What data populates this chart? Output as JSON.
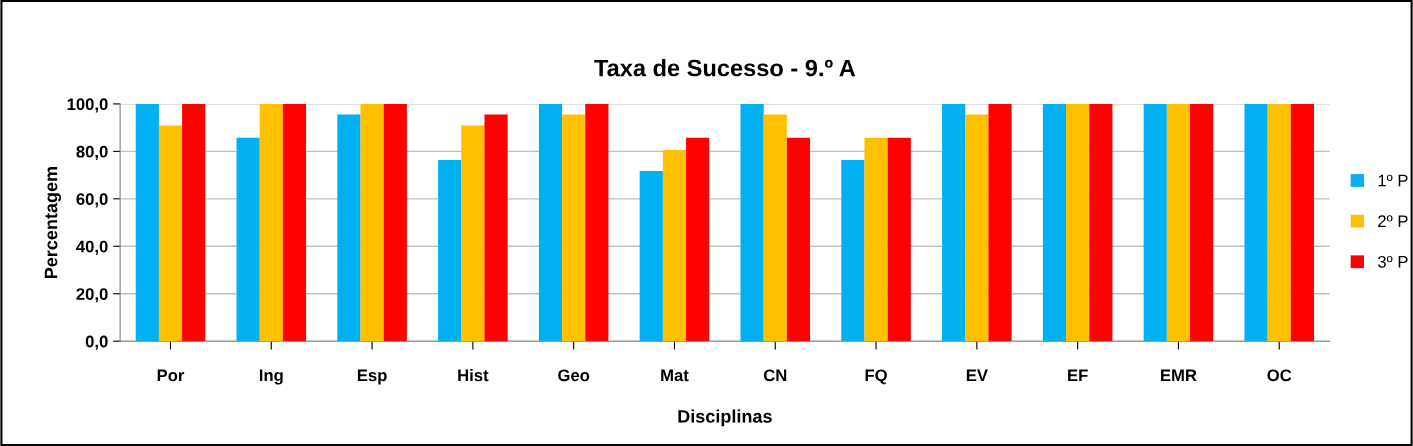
{
  "chart_data": {
    "type": "bar",
    "title": "Taxa de Sucesso - 9.º A",
    "xlabel": "Disciplinas",
    "ylabel": "Percentagem",
    "categories": [
      "Por",
      "Ing",
      "Esp",
      "Hist",
      "Geo",
      "Mat",
      "CN",
      "FQ",
      "EV",
      "EF",
      "EMR",
      "OC"
    ],
    "series": [
      {
        "name": "1º P",
        "color": "#00b0f0",
        "values": [
          100,
          85.7,
          95.5,
          76.4,
          100,
          71.7,
          100,
          76.4,
          100,
          100,
          100,
          100
        ]
      },
      {
        "name": "2º P",
        "color": "#ffc000",
        "values": [
          90.9,
          100,
          100,
          90.9,
          95.5,
          80.6,
          95.5,
          85.7,
          95.5,
          100,
          100,
          100
        ]
      },
      {
        "name": "3º P",
        "color": "#ff0000",
        "values": [
          100,
          100,
          100,
          95.5,
          100,
          85.7,
          85.7,
          85.7,
          100,
          100,
          100,
          100
        ]
      }
    ],
    "ylim": [
      0,
      100
    ],
    "yticks": [
      {
        "value": 0,
        "label": "0,0"
      },
      {
        "value": 20,
        "label": "20,0"
      },
      {
        "value": 40,
        "label": "40,0"
      },
      {
        "value": 60,
        "label": "60,0"
      },
      {
        "value": 80,
        "label": "80,0"
      },
      {
        "value": 100,
        "label": "100,0"
      }
    ],
    "grid": "y",
    "legend": "right"
  }
}
